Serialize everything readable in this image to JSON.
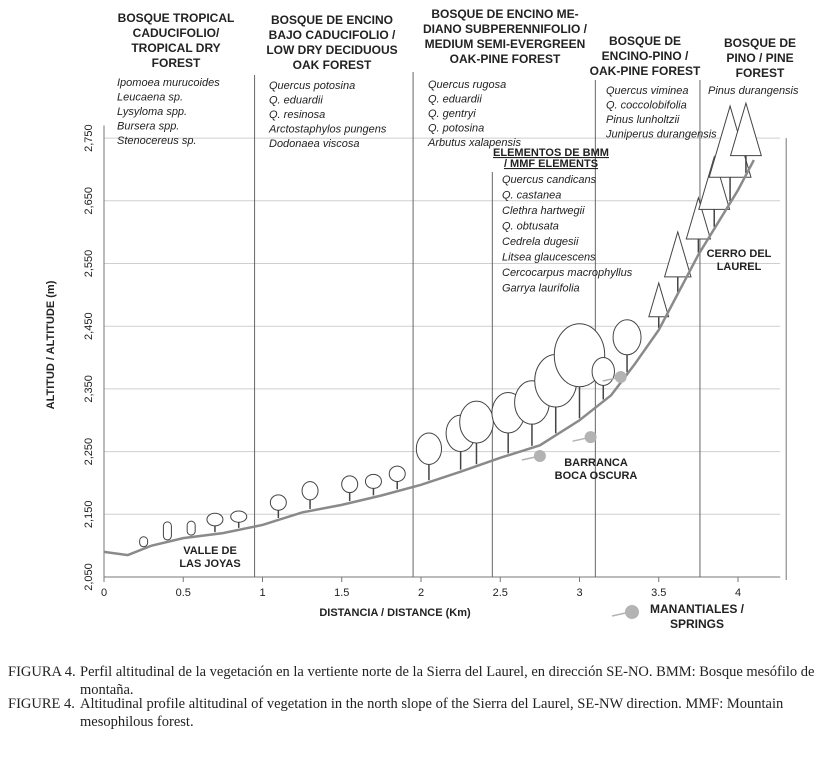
{
  "chart_data": {
    "type": "line",
    "x": [
      0,
      0.15,
      0.3,
      0.5,
      0.75,
      1,
      1.25,
      1.5,
      1.75,
      2,
      2.25,
      2.5,
      2.75,
      3,
      3.2,
      3.35,
      3.5,
      3.75,
      4,
      4.1
    ],
    "series": [
      {
        "color": "#8a8a8a",
        "values": [
          2090,
          2085,
          2100,
          2112,
          2120,
          2133,
          2153,
          2165,
          2180,
          2197,
          2218,
          2240,
          2260,
          2300,
          2340,
          2390,
          2444,
          2564,
          2667,
          2715
        ]
      }
    ],
    "xlim": [
      0,
      4.14
    ],
    "ylim": [
      2050,
      2770
    ],
    "xticks": [
      0,
      0.5,
      1,
      1.5,
      2,
      2.5,
      3,
      3.5,
      4
    ],
    "yticks": [
      {
        "value": 2050,
        "label": "2,050"
      },
      {
        "value": 2150,
        "label": "2,150"
      },
      {
        "value": 2250,
        "label": "2,250"
      },
      {
        "value": 2350,
        "label": "2,350"
      },
      {
        "value": 2450,
        "label": "2,450"
      },
      {
        "value": 2550,
        "label": "2,550"
      },
      {
        "value": 2650,
        "label": "2,650"
      },
      {
        "value": 2750,
        "label": "2,750"
      }
    ],
    "grid": true,
    "xlabel": "DISTANCIA / DISTANCE (Km)",
    "ylabel": "ALTITUD / ALTITUDE (m)",
    "boundaries": [
      0.95,
      1.95,
      2.45,
      3.1,
      3.76
    ],
    "zones": [
      {
        "title": [
          "BOSQUE TROPICAL",
          "CADUCIFOLIO/",
          "TROPICAL DRY",
          "FOREST"
        ],
        "species": [
          "Ipomoea murucoides",
          "Leucaena sp.",
          "Lysyloma spp.",
          "Bursera spp.",
          "Stenocereus sp."
        ]
      },
      {
        "title": [
          "BOSQUE DE ENCINO",
          "BAJO CADUCIFOLIO /",
          "LOW DRY DECIDUOUS",
          "OAK FOREST"
        ],
        "species": [
          "Quercus potosina",
          "Q. eduardii",
          "Q. resinosa",
          "Arctostaphylos  pungens",
          "Dodonaea viscosa"
        ]
      },
      {
        "title": [
          "BOSQUE DE ENCINO ME-",
          "DIANO SUBPERENNIFOLIO /",
          "MEDIUM SEMI-EVERGREEN",
          "OAK-PINE FOREST"
        ],
        "species": [
          "Quercus  rugosa",
          "Q. eduardii",
          "Q. gentryi",
          "Q. potosina",
          "Arbutus xalapensis"
        ]
      },
      {
        "title": [
          "BOSQUE DE",
          "ENCINO-PINO /",
          "OAK-PINE FOREST"
        ],
        "species": [
          "Quercus viminea",
          "Q. coccolobifolia",
          "Pinus lunholtzii",
          "Juniperus durangensis"
        ]
      },
      {
        "title": [
          "BOSQUE DE",
          "PINO / PINE",
          "FOREST"
        ],
        "species": [
          "Pinus durangensis"
        ]
      }
    ],
    "mmf": {
      "title": [
        "ELEMENTOS DE BMM",
        "/ MMF ELEMENTS"
      ],
      "species": [
        "Quercus candicans",
        "Q. castanea",
        "Clethra hartwegii",
        "Q. obtusata",
        "Cedrela dugesii",
        "Litsea glaucescens",
        "Cercocarpus macrophyllus",
        "Garrya laurifolia"
      ]
    },
    "places": [
      [
        "VALLE DE",
        "LAS JOYAS"
      ],
      [
        "BARRANCA",
        "BOCA OSCURA"
      ],
      [
        "CERRO DEL",
        "LAUREL"
      ]
    ],
    "springs": {
      "label": [
        "MANANTIALES /",
        "SPRINGS"
      ],
      "color": "#b3b3b3",
      "x": [
        2.75,
        3.07,
        3.26
      ],
      "y": [
        2243,
        2273,
        2369
      ]
    }
  },
  "captions": [
    {
      "label": "FIGURA 4.",
      "text": "Perfil altitudinal de la vegetación en la vertiente norte de la Sierra del Laurel, en dirección SE-NO. BMM: Bosque mesófilo de montaña."
    },
    {
      "label": "FIGURE 4.",
      "text": "Altitudinal profile altitudinal of vegetation in the north slope of the Sierra del Laurel, SE-NW direction. MMF: Mountain mesophilous forest."
    }
  ]
}
